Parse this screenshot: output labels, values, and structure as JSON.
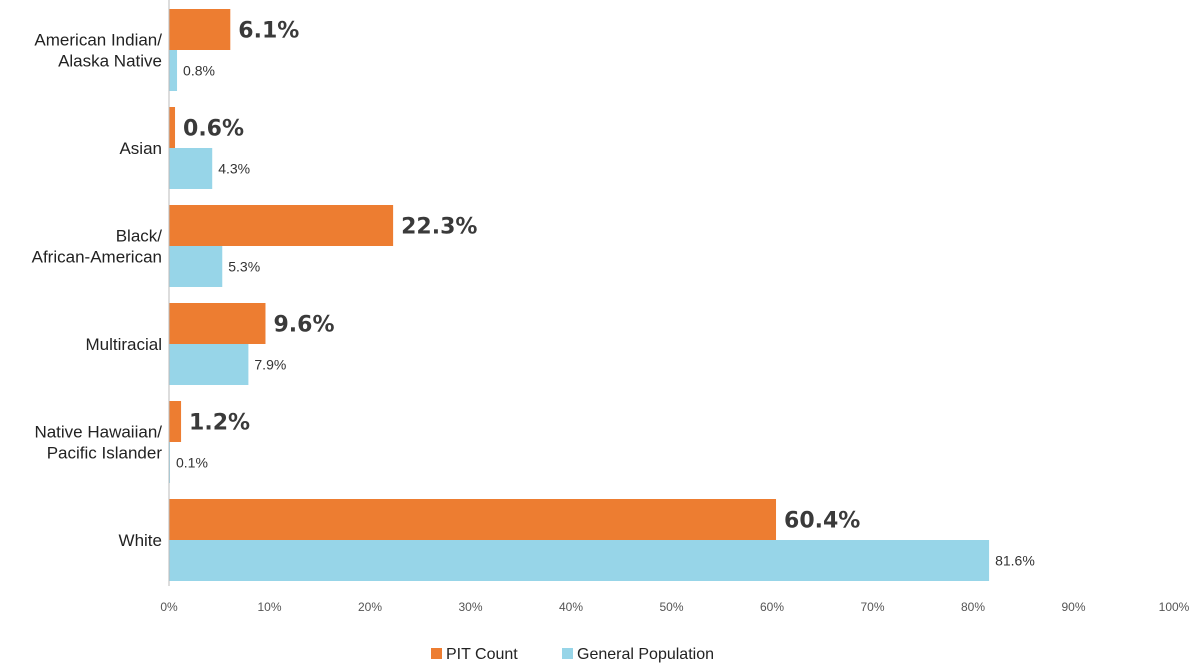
{
  "chart_data": {
    "type": "bar",
    "orientation": "horizontal",
    "title": "",
    "categories": [
      [
        "American Indian/",
        "Alaska Native"
      ],
      [
        "Asian"
      ],
      [
        "Black/",
        "African-American"
      ],
      [
        "Multiracial"
      ],
      [
        "Native Hawaiian/",
        "Pacific Islander"
      ],
      [
        "White"
      ]
    ],
    "series": [
      {
        "name": "PIT Count",
        "color": "#ed7d31",
        "values": [
          6.1,
          0.6,
          22.3,
          9.6,
          1.2,
          60.4
        ],
        "labels": [
          "6.1%",
          "0.6%",
          "22.3%",
          "9.6%",
          "1.2%",
          "60.4%"
        ]
      },
      {
        "name": "General Population",
        "color": "#97d5e8",
        "values": [
          0.8,
          4.3,
          5.3,
          7.9,
          0.1,
          81.6
        ],
        "labels": [
          "0.8%",
          "4.3%",
          "5.3%",
          "7.9%",
          "0.1%",
          "81.6%"
        ]
      }
    ],
    "xlim": [
      0,
      100
    ],
    "xticks": [
      "0%",
      "10%",
      "20%",
      "30%",
      "40%",
      "50%",
      "60%",
      "70%",
      "80%",
      "90%",
      "100%"
    ],
    "grid": false,
    "legend_position": "bottom"
  }
}
